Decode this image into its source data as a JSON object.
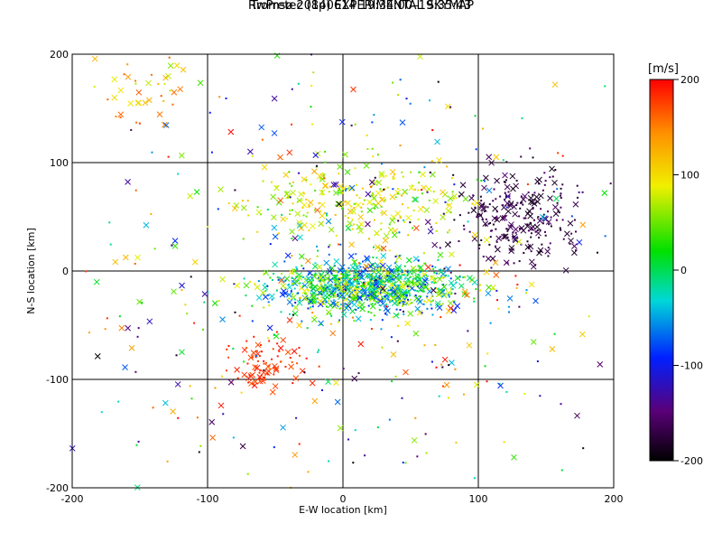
{
  "chart_data": {
    "type": "scatter",
    "title": "Tromsø 20140614 19:34:00–19:35:43",
    "subtitle": "RwPretec (8p) EXPERIMENTAL SKYMAP",
    "xlabel": "E-W location [km]",
    "ylabel": "N-S location [km]",
    "xlim": [
      -200,
      200
    ],
    "ylim": [
      -200,
      200
    ],
    "xticks": [
      "-200",
      "-100",
      "0",
      "100",
      "200"
    ],
    "yticks": [
      "-200",
      "-100",
      "0",
      "100",
      "200"
    ],
    "grid": true,
    "colorbar": {
      "label": "[m/s]",
      "range": [
        -200,
        200
      ],
      "ticks": [
        "200",
        "100",
        "0",
        "-100",
        "-200"
      ],
      "colormap": "black-purple-blue-cyan-green-yellow-orange-red"
    },
    "markers": [
      "x",
      "dot"
    ],
    "clusters": [
      {
        "cx": 20,
        "cy": -15,
        "sx": 35,
        "sy": 12,
        "n": 900,
        "vmean": 0,
        "vspread": 200
      },
      {
        "cx": 130,
        "cy": 50,
        "sx": 22,
        "sy": 22,
        "n": 260,
        "vmean": -170,
        "vspread": 40
      },
      {
        "cx": 10,
        "cy": 65,
        "sx": 40,
        "sy": 18,
        "n": 260,
        "vmean": 80,
        "vspread": 90
      },
      {
        "cx": -55,
        "cy": -85,
        "sx": 15,
        "sy": 12,
        "n": 90,
        "vmean": 180,
        "vspread": 30
      },
      {
        "cx": -140,
        "cy": 170,
        "sx": 20,
        "sy": 18,
        "n": 40,
        "vmean": 120,
        "vspread": 100
      },
      {
        "cx": 0,
        "cy": 0,
        "sx": 110,
        "sy": 110,
        "n": 500,
        "vmean": 0,
        "vspread": 400
      }
    ]
  }
}
